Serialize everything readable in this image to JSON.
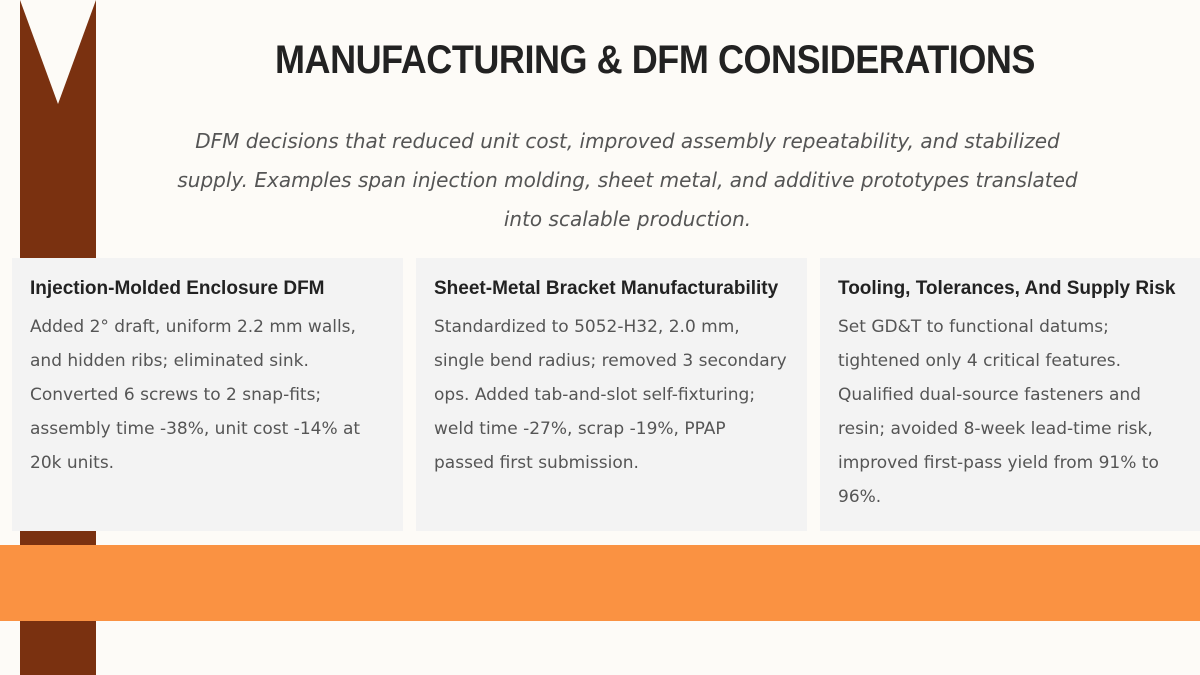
{
  "header": {
    "title": "MANUFACTURING & DFM CONSIDERATIONS",
    "subtitle": "DFM decisions that reduced unit cost, improved assembly repeatability, and stabilized supply. Examples span injection molding, sheet metal, and additive prototypes translated into scalable production."
  },
  "cards": [
    {
      "title": "Injection-Molded Enclosure DFM",
      "body": "Added 2° draft, uniform 2.2 mm walls, and hidden ribs; eliminated sink. Converted 6 screws to 2 snap-fits; assembly time -38%, unit cost -14% at 20k units."
    },
    {
      "title": "Sheet-Metal Bracket Manufacturability",
      "body": "Standardized to 5052-H32, 2.0 mm, single bend radius; removed 3 secondary ops. Added tab-and-slot self-fixturing; weld time -27%, scrap -19%, PPAP passed first submission."
    },
    {
      "title": "Tooling, Tolerances, And Supply Risk",
      "body": "Set GD&T to functional datums; tightened only 4 critical features. Qualified dual-source fasteners and resin; avoided 8-week lead-time risk, improved first-pass yield from 91% to 96%."
    }
  ]
}
